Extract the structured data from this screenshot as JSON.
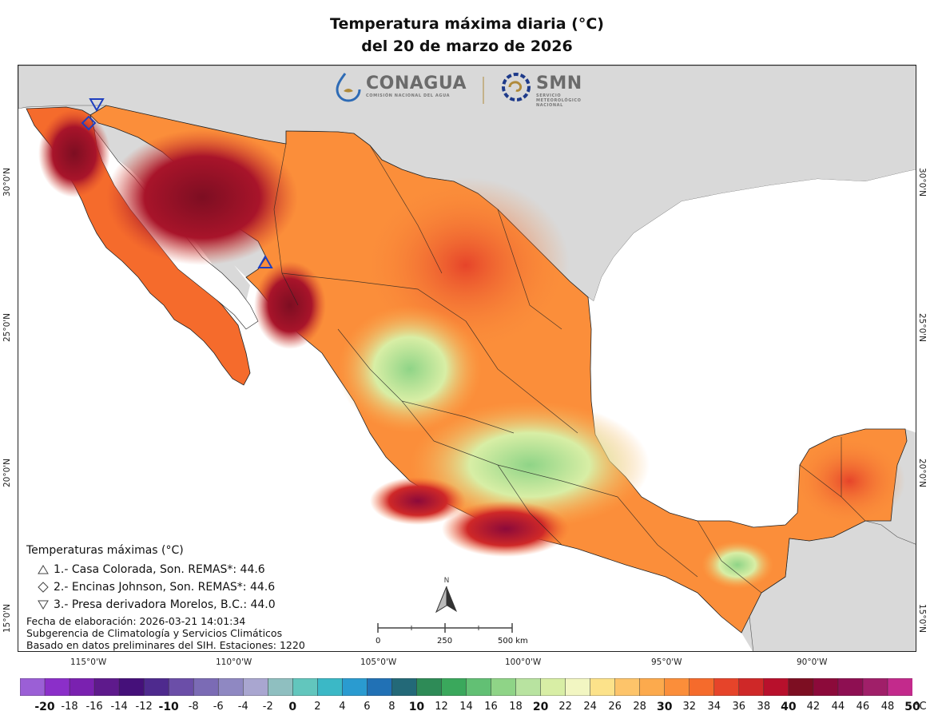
{
  "title": {
    "line1": "Temperatura máxima diaria (°C)",
    "line2": "del 20 de marzo de 2026"
  },
  "logos": {
    "conagua": {
      "name": "CONAGUA",
      "subtitle": "COMISIÓN NACIONAL DEL AGUA",
      "icon": "conagua-logo-icon"
    },
    "smn": {
      "name": "SMN",
      "subtitle_l1": "SERVICIO",
      "subtitle_l2": "METEOROLÓGICO",
      "subtitle_l3": "NACIONAL",
      "icon": "smn-logo-icon"
    }
  },
  "legend": {
    "title": "Temperaturas máximas (°C)",
    "items": [
      {
        "symbol": "triangle-up",
        "label": "1.- Casa Colorada, Son. REMAS*: 44.6"
      },
      {
        "symbol": "diamond",
        "label": "2.- Encinas Johnson, Son. REMAS*: 44.6"
      },
      {
        "symbol": "triangle-down",
        "label": "3.- Presa derivadora Morelos, B.C.: 44.0"
      }
    ]
  },
  "credits": {
    "line1": "Fecha de elaboración: 2026-03-21 14:01:34",
    "line2": "Subgerencia de Climatología y Servicios Climáticos",
    "line3": "Basado en datos preliminares del SIH. Estaciones: 1220"
  },
  "north_arrow": {
    "label": "N",
    "icon": "north-arrow-icon"
  },
  "scalebar": {
    "labels": [
      "0",
      "250",
      "500 km"
    ]
  },
  "coords": {
    "bottom": [
      "115°0'W",
      "110°0'W",
      "105°0'W",
      "100°0'W",
      "95°0'W",
      "90°0'W"
    ],
    "left": [
      "30°0'N",
      "25°0'N",
      "20°0'N",
      "15°0'N"
    ],
    "right": [
      "30°0'N",
      "25°0'N",
      "20°0'N",
      "15°0'N"
    ]
  },
  "colorbar": {
    "unit": "°C",
    "labels": [
      "-20",
      "-18",
      "-16",
      "-14",
      "-12",
      "-10",
      "-8",
      "-6",
      "-4",
      "-2",
      "0",
      "2",
      "4",
      "6",
      "8",
      "10",
      "12",
      "14",
      "16",
      "18",
      "20",
      "22",
      "24",
      "26",
      "28",
      "30",
      "32",
      "34",
      "36",
      "38",
      "40",
      "42",
      "44",
      "46",
      "48",
      "50"
    ],
    "bold_labels": [
      "-20",
      "-10",
      "0",
      "10",
      "20",
      "30",
      "40",
      "50"
    ],
    "colors": [
      "#9b5fd6",
      "#8b2fc9",
      "#7a21b0",
      "#5e1a8c",
      "#45107a",
      "#4e2a8e",
      "#6b4ea8",
      "#7b6bb5",
      "#8f88c2",
      "#a9a6d0",
      "#8fbfc0",
      "#62c6bd",
      "#3bb8c6",
      "#2a9bd0",
      "#2171b5",
      "#236978",
      "#2e8b57",
      "#3aa85c",
      "#62c074",
      "#8fd487",
      "#b8e3a0",
      "#d8eea5",
      "#f2f6c2",
      "#fce28a",
      "#fdc46a",
      "#fcaa4d",
      "#fb8e3a",
      "#f56b2c",
      "#e6442a",
      "#cf2828",
      "#b8102c",
      "#7d0e22",
      "#8c0a3a",
      "#8e0f52",
      "#a01f69",
      "#c32a8c"
    ]
  },
  "map": {
    "ocean_color": "#ffffff",
    "land_outside_color": "#d9d9d9",
    "markers": [
      {
        "symbol": "triangle-down",
        "label": "3"
      },
      {
        "symbol": "diamond",
        "label": "2"
      },
      {
        "symbol": "triangle-up",
        "label": "1"
      }
    ]
  }
}
